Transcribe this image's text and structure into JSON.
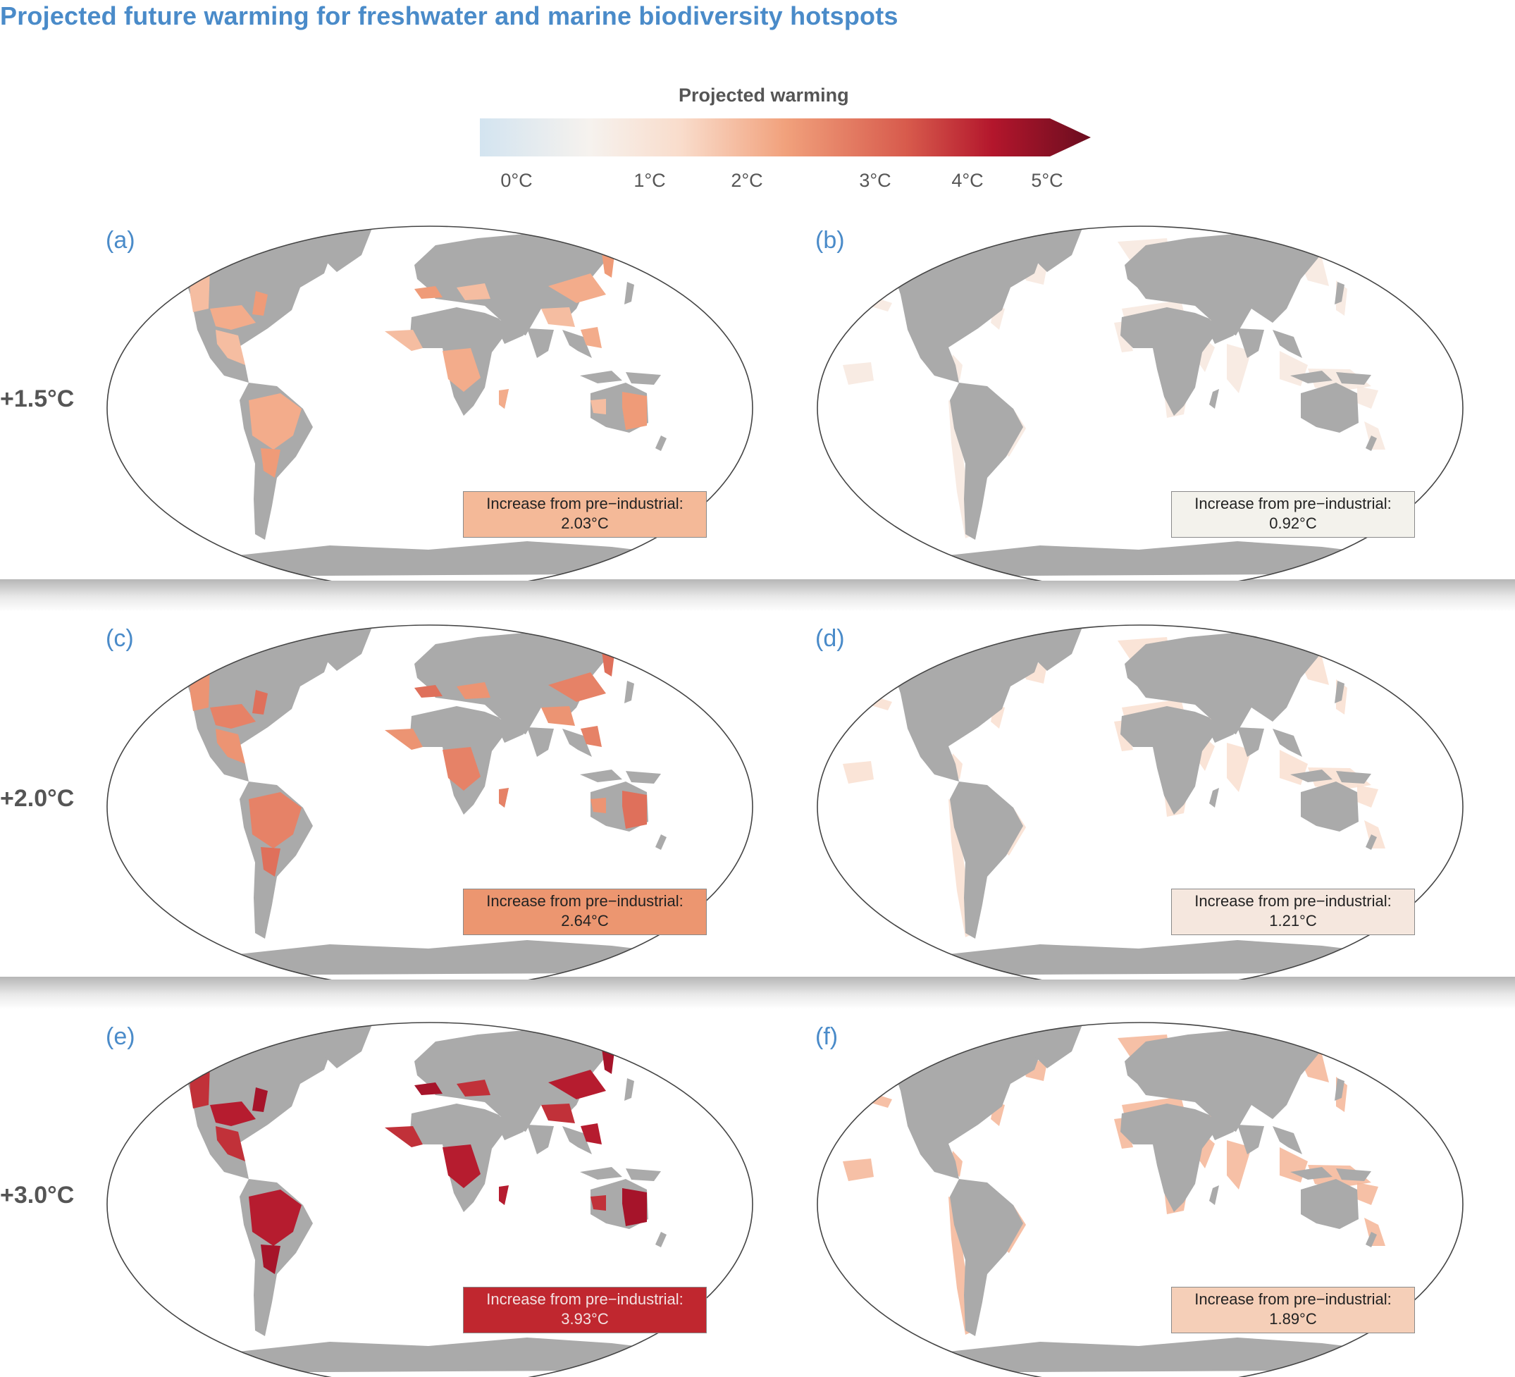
{
  "title": "Projected future warming for freshwater and marine biodiversity hotspots",
  "colorbar": {
    "title": "Projected warming",
    "ticks": [
      "0°C",
      "1°C",
      "2°C",
      "3°C",
      "4°C",
      "5°C"
    ],
    "tick_values": [
      0,
      1,
      2,
      3,
      4,
      5
    ],
    "domain": [
      -0.3,
      5.2
    ],
    "extend": "max",
    "colors": [
      "#d3e4f0",
      "#f6f2ee",
      "#f7c9ac",
      "#e8906d",
      "#c13a3c",
      "#a3132a",
      "#660b1e"
    ]
  },
  "rows": [
    {
      "label": "+1.5°C"
    },
    {
      "label": "+2.0°C"
    },
    {
      "label": "+3.0°C"
    }
  ],
  "panels": [
    {
      "id": "a",
      "label": "(a)",
      "type": "freshwater",
      "box_line1": "Increase from pre−industrial:",
      "box_value": "2.03°C",
      "value": 2.03,
      "box_color": "#f4b998",
      "text_color": "#222222"
    },
    {
      "id": "b",
      "label": "(b)",
      "type": "marine",
      "box_line1": "Increase from pre−industrial:",
      "box_value": "0.92°C",
      "value": 0.92,
      "box_color": "#f3f2ec",
      "text_color": "#222222"
    },
    {
      "id": "c",
      "label": "(c)",
      "type": "freshwater",
      "box_line1": "Increase from pre−industrial:",
      "box_value": "2.64°C",
      "value": 2.64,
      "box_color": "#ec9670",
      "text_color": "#222222"
    },
    {
      "id": "d",
      "label": "(d)",
      "type": "marine",
      "box_line1": "Increase from pre−industrial:",
      "box_value": "1.21°C",
      "value": 1.21,
      "box_color": "#f5e7de",
      "text_color": "#222222"
    },
    {
      "id": "e",
      "label": "(e)",
      "type": "freshwater",
      "box_line1": "Increase from pre−industrial:",
      "box_value": "3.93°C",
      "value": 3.93,
      "box_color": "#c0272f",
      "text_color": "#f3e1e1"
    },
    {
      "id": "f",
      "label": "(f)",
      "type": "marine",
      "box_line1": "Increase from pre−industrial:",
      "box_value": "1.89°C",
      "value": 1.89,
      "box_color": "#f5cfb8",
      "text_color": "#222222"
    }
  ],
  "map_colors": {
    "land": "#aaaaaa",
    "ocean": "#ffffff",
    "outline": "#444444"
  }
}
